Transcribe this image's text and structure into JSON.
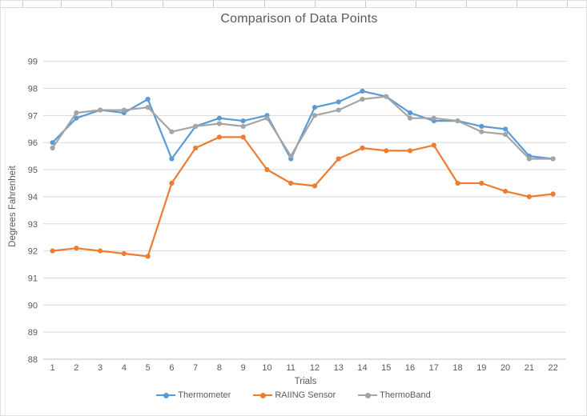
{
  "chart_data": {
    "type": "line",
    "title": "Comparison of Data Points",
    "xlabel": "Trials",
    "ylabel": "Degrees Fahrenheit",
    "x": [
      1,
      2,
      3,
      4,
      5,
      6,
      7,
      8,
      9,
      10,
      11,
      12,
      13,
      14,
      15,
      16,
      17,
      18,
      19,
      20,
      21,
      22
    ],
    "ylim": [
      88,
      99
    ],
    "ytick_step": 1,
    "grid": true,
    "legend_position": "bottom",
    "colors": {
      "text": "#595959",
      "gridline": "#d9d9d9",
      "axis_line": "#bfbfbf",
      "background": "#ffffff"
    },
    "series": [
      {
        "name": "Thermometer",
        "color": "#5B9BD5",
        "values": [
          96.0,
          96.9,
          97.2,
          97.1,
          97.6,
          95.4,
          96.6,
          96.9,
          96.8,
          97.0,
          95.4,
          97.3,
          97.5,
          97.9,
          97.7,
          97.1,
          96.8,
          96.8,
          96.6,
          96.5,
          95.5,
          95.4
        ]
      },
      {
        "name": "RAIING Sensor",
        "color": "#ED7D31",
        "values": [
          92.0,
          92.1,
          92.0,
          91.9,
          91.8,
          94.5,
          95.8,
          96.2,
          96.2,
          95.0,
          94.5,
          94.4,
          95.4,
          95.8,
          95.7,
          95.7,
          95.9,
          94.5,
          94.5,
          94.2,
          94.0,
          94.1
        ]
      },
      {
        "name": "ThermoBand",
        "color": "#A5A5A5",
        "values": [
          95.8,
          97.1,
          97.2,
          97.2,
          97.3,
          96.4,
          96.6,
          96.7,
          96.6,
          96.9,
          95.5,
          97.0,
          97.2,
          97.6,
          97.7,
          96.9,
          96.9,
          96.8,
          96.4,
          96.3,
          95.4,
          95.4
        ]
      }
    ]
  }
}
